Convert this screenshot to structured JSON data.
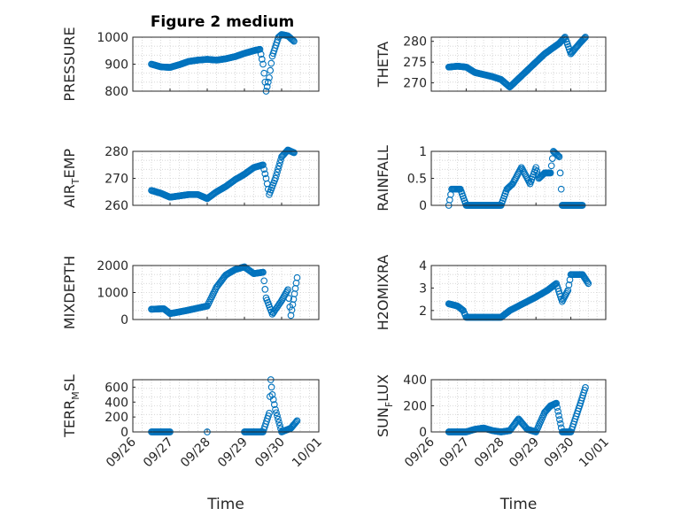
{
  "figure_title": "Figure 2 medium",
  "x_axis_label": "Time",
  "x_tick_labels": [
    "09/26",
    "09/27",
    "09/28",
    "09/29",
    "09/30",
    "10/01"
  ],
  "marker_color": "#0072BD",
  "chart_data": [
    {
      "type": "scatter",
      "title": "Figure 2 medium",
      "ylabel": "PRESSURE",
      "ylim": [
        800,
        1000
      ],
      "yticks": [
        "800",
        "900",
        "1000"
      ],
      "grid": true,
      "x": [
        "09/26 12:00",
        "09/26 18:00",
        "09/27 00:00",
        "09/27 06:00",
        "09/27 12:00",
        "09/27 18:00",
        "09/28 00:00",
        "09/28 06:00",
        "09/28 12:00",
        "09/28 18:00",
        "09/29 00:00",
        "09/29 06:00",
        "09/29 10:00",
        "09/29 12:00",
        "09/29 14:00",
        "09/29 16:00",
        "09/29 18:00",
        "09/29 22:00",
        "09/30 00:00",
        "09/30 04:00",
        "09/30 08:00"
      ],
      "y": [
        900,
        890,
        888,
        898,
        910,
        915,
        918,
        915,
        920,
        928,
        940,
        950,
        955,
        900,
        800,
        850,
        930,
        1000,
        1010,
        1005,
        985
      ]
    },
    {
      "type": "scatter",
      "ylabel": "THETA",
      "ylim": [
        268,
        281
      ],
      "yticks": [
        "270",
        "275",
        "280"
      ],
      "grid": true,
      "x": [
        "09/26 12:00",
        "09/26 18:00",
        "09/27 00:00",
        "09/27 06:00",
        "09/27 12:00",
        "09/27 18:00",
        "09/28 00:00",
        "09/28 06:00",
        "09/28 12:00",
        "09/28 18:00",
        "09/29 00:00",
        "09/29 06:00",
        "09/29 12:00",
        "09/29 16:00",
        "09/29 20:00",
        "09/30 00:00",
        "09/30 06:00",
        "09/30 10:00"
      ],
      "y": [
        273.8,
        274,
        273.8,
        272.5,
        272,
        271.5,
        270.8,
        269,
        271,
        273,
        275,
        277,
        278.5,
        279.5,
        281,
        277,
        279.5,
        281
      ]
    },
    {
      "type": "scatter",
      "ylabel": "AIR_TEMP",
      "ylim": [
        260,
        280
      ],
      "yticks": [
        "260",
        "270",
        "280"
      ],
      "grid": true,
      "x": [
        "09/26 12:00",
        "09/26 18:00",
        "09/27 00:00",
        "09/27 06:00",
        "09/27 12:00",
        "09/27 18:00",
        "09/28 00:00",
        "09/28 06:00",
        "09/28 12:00",
        "09/28 18:00",
        "09/29 00:00",
        "09/29 06:00",
        "09/29 12:00",
        "09/29 14:00",
        "09/29 16:00",
        "09/29 20:00",
        "09/30 00:00",
        "09/30 04:00",
        "09/30 08:00"
      ],
      "y": [
        265.5,
        264.5,
        263,
        263.5,
        264,
        264,
        262.5,
        265,
        267,
        269.5,
        271.5,
        274,
        275,
        270,
        264,
        270,
        278,
        280.5,
        279.5
      ]
    },
    {
      "type": "scatter",
      "ylabel": "RAINFALL",
      "ylim": [
        0,
        1
      ],
      "yticks": [
        "0",
        "0.5",
        "1"
      ],
      "grid": true,
      "x": [
        "09/26 12:00",
        "09/26 14:00",
        "09/26 20:00",
        "09/27 00:00",
        "09/27 12:00",
        "09/28 00:00",
        "09/28 04:00",
        "09/28 08:00",
        "09/28 14:00",
        "09/28 20:00",
        "09/29 00:00",
        "09/29 02:00",
        "09/29 06:00",
        "09/29 10:00",
        "09/29 12:00",
        "09/29 16:00",
        "09/29 18:00",
        "09/30 00:00",
        "09/30 08:00"
      ],
      "y": [
        0,
        0.3,
        0.3,
        0,
        0,
        0,
        0.3,
        0.4,
        0.7,
        0.4,
        0.7,
        0.5,
        0.6,
        0.6,
        1.0,
        0.9,
        0,
        0,
        0
      ]
    },
    {
      "type": "scatter",
      "ylabel": "MIXDEPTH",
      "ylim": [
        0,
        2000
      ],
      "yticks": [
        "0",
        "1000",
        "2000"
      ],
      "grid": true,
      "x": [
        "09/26 12:00",
        "09/26 20:00",
        "09/27 00:00",
        "09/27 06:00",
        "09/27 12:00",
        "09/28 00:00",
        "09/28 06:00",
        "09/28 12:00",
        "09/28 18:00",
        "09/29 00:00",
        "09/29 06:00",
        "09/29 12:00",
        "09/29 14:00",
        "09/29 18:00",
        "09/30 00:00",
        "09/30 04:00",
        "09/30 06:00",
        "09/30 10:00"
      ],
      "y": [
        380,
        400,
        220,
        280,
        350,
        500,
        1200,
        1650,
        1850,
        1950,
        1700,
        1750,
        800,
        200,
        700,
        1100,
        150,
        1550
      ]
    },
    {
      "type": "scatter",
      "ylabel": "H2OMIXRA",
      "ylim": [
        1.6,
        4
      ],
      "yticks": [
        "2",
        "3",
        "4"
      ],
      "grid": true,
      "x": [
        "09/26 12:00",
        "09/26 18:00",
        "09/26 22:00",
        "09/27 00:00",
        "09/27 12:00",
        "09/28 00:00",
        "09/28 06:00",
        "09/28 12:00",
        "09/28 18:00",
        "09/29 00:00",
        "09/29 08:00",
        "09/29 14:00",
        "09/29 18:00",
        "09/29 22:00",
        "09/30 00:00",
        "09/30 08:00",
        "09/30 12:00"
      ],
      "y": [
        2.3,
        2.2,
        2.0,
        1.7,
        1.7,
        1.7,
        2.0,
        2.2,
        2.4,
        2.6,
        2.9,
        3.2,
        2.4,
        2.9,
        3.6,
        3.6,
        3.2
      ]
    },
    {
      "type": "scatter",
      "ylabel": "TERR_MSL",
      "ylim": [
        0,
        700
      ],
      "yticks": [
        "0",
        "200",
        "400",
        "600"
      ],
      "grid": true,
      "x": [
        "09/26 12:00",
        "09/27 00:00",
        "09/28 00:00",
        "09/29 00:00",
        "09/29 12:00",
        "09/29 16:00",
        "09/29 17:00",
        "09/29 18:00",
        "09/29 20:00",
        "09/30 00:00",
        "09/30 06:00",
        "09/30 10:00"
      ],
      "y": [
        0,
        0,
        0,
        0,
        0,
        250,
        700,
        500,
        300,
        0,
        50,
        150
      ]
    },
    {
      "type": "scatter",
      "ylabel": "SUN_FLUX",
      "ylim": [
        0,
        400
      ],
      "yticks": [
        "0",
        "200",
        "400"
      ],
      "grid": true,
      "x": [
        "09/26 12:00",
        "09/27 00:00",
        "09/27 06:00",
        "09/27 12:00",
        "09/27 18:00",
        "09/28 00:00",
        "09/28 06:00",
        "09/28 12:00",
        "09/28 18:00",
        "09/29 00:00",
        "09/29 06:00",
        "09/29 10:00",
        "09/29 14:00",
        "09/29 18:00",
        "09/30 00:00",
        "09/30 06:00",
        "09/30 10:00"
      ],
      "y": [
        0,
        0,
        20,
        30,
        10,
        0,
        10,
        100,
        20,
        0,
        150,
        200,
        220,
        0,
        0,
        200,
        340
      ]
    }
  ]
}
